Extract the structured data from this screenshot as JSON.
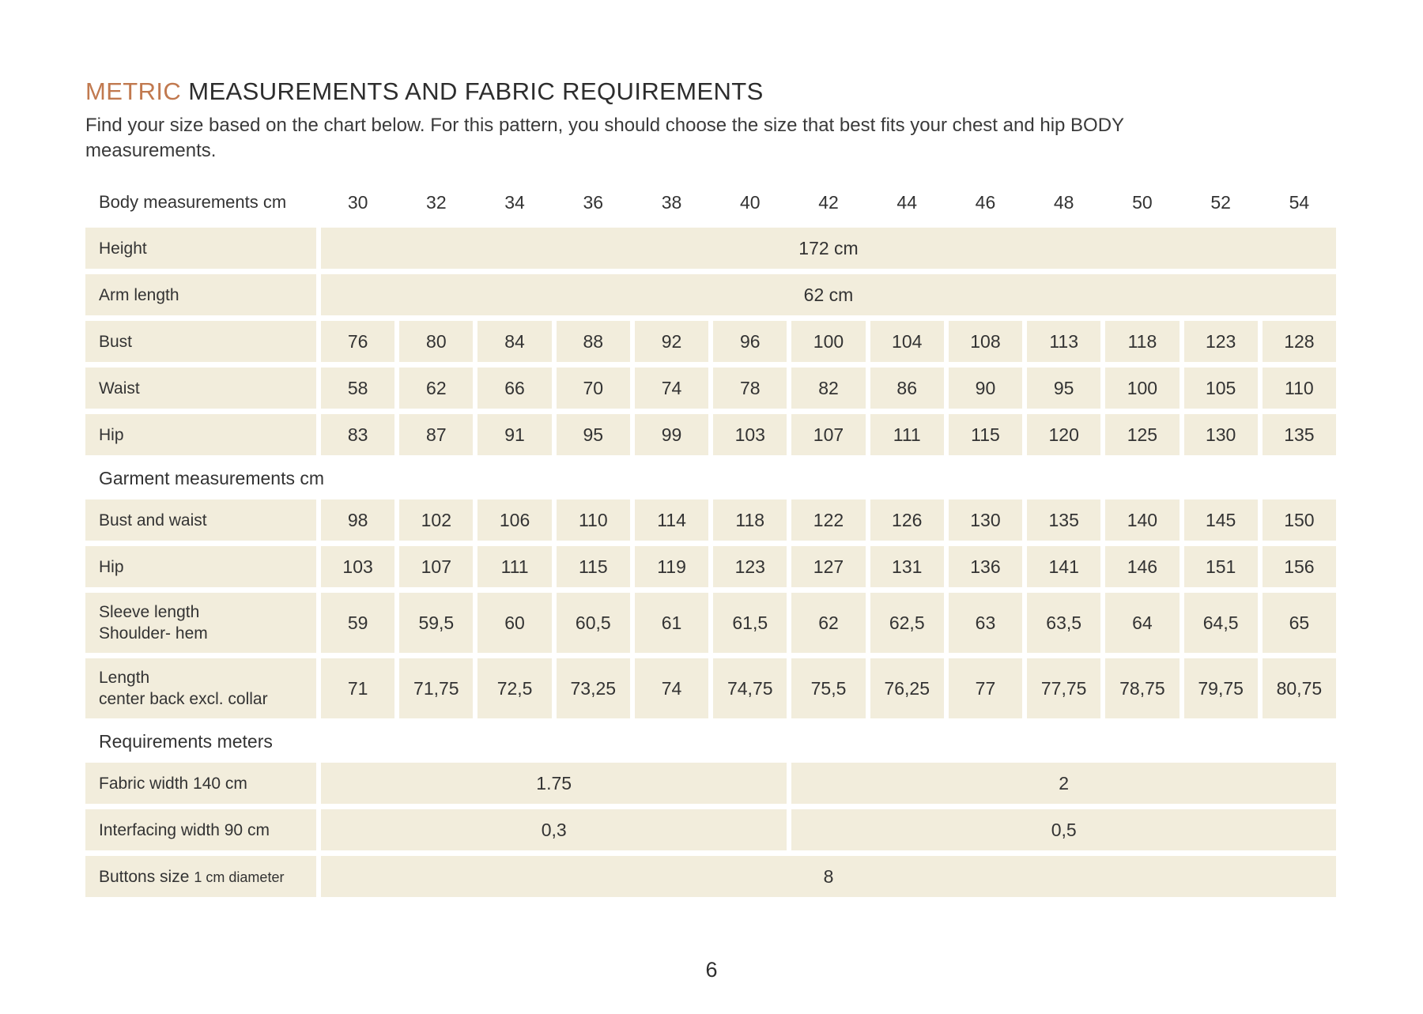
{
  "document": {
    "title": {
      "highlight": "METRIC",
      "rest": "MEASUREMENTS AND FABRIC REQUIREMENTS"
    },
    "intro": "Find your size based on the chart below. For this pattern, you should choose the size that best fits your chest and hip BODY measurements.",
    "page_number": "6"
  },
  "colors": {
    "accent": "#c1794f",
    "cell_bg": "#f2eddc",
    "text": "#333333"
  },
  "table": {
    "header_label": "Body measurements cm",
    "sizes": [
      "30",
      "32",
      "34",
      "36",
      "38",
      "40",
      "42",
      "44",
      "46",
      "48",
      "50",
      "52",
      "54"
    ],
    "rows": [
      {
        "type": "span",
        "label": [
          "Height"
        ],
        "value": "172 cm",
        "span": 13
      },
      {
        "type": "span",
        "label": [
          "Arm length"
        ],
        "value": "62 cm",
        "span": 13
      },
      {
        "type": "cells",
        "label": [
          "Bust"
        ],
        "values": [
          "76",
          "80",
          "84",
          "88",
          "92",
          "96",
          "100",
          "104",
          "108",
          "113",
          "118",
          "123",
          "128"
        ]
      },
      {
        "type": "cells",
        "label": [
          "Waist"
        ],
        "values": [
          "58",
          "62",
          "66",
          "70",
          "74",
          "78",
          "82",
          "86",
          "90",
          "95",
          "100",
          "105",
          "110"
        ]
      },
      {
        "type": "cells",
        "label": [
          "Hip"
        ],
        "values": [
          "83",
          "87",
          "91",
          "95",
          "99",
          "103",
          "107",
          "111",
          "115",
          "120",
          "125",
          "130",
          "135"
        ]
      },
      {
        "type": "section",
        "label": [
          "Garment measurements cm"
        ]
      },
      {
        "type": "cells",
        "label": [
          "Bust and waist"
        ],
        "values": [
          "98",
          "102",
          "106",
          "110",
          "114",
          "118",
          "122",
          "126",
          "130",
          "135",
          "140",
          "145",
          "150"
        ]
      },
      {
        "type": "cells",
        "label": [
          "Hip"
        ],
        "values": [
          "103",
          "107",
          "111",
          "115",
          "119",
          "123",
          "127",
          "131",
          "136",
          "141",
          "146",
          "151",
          "156"
        ]
      },
      {
        "type": "cells",
        "label": [
          "Sleeve length",
          "Shoulder- hem"
        ],
        "values": [
          "59",
          "59,5",
          "60",
          "60,5",
          "61",
          "61,5",
          "62",
          "62,5",
          "63",
          "63,5",
          "64",
          "64,5",
          "65"
        ]
      },
      {
        "type": "cells",
        "label": [
          "Length",
          "center back excl. collar"
        ],
        "values": [
          "71",
          "71,75",
          "72,5",
          "73,25",
          "74",
          "74,75",
          "75,5",
          "76,25",
          "77",
          "77,75",
          "78,75",
          "79,75",
          "80,75"
        ]
      },
      {
        "type": "section",
        "label": [
          "Requirements meters"
        ]
      },
      {
        "type": "split",
        "label": [
          "Fabric width 140 cm"
        ],
        "left": "1.75",
        "left_span": 6,
        "right": "2",
        "right_span": 7
      },
      {
        "type": "split",
        "label": [
          "Interfacing width 90 cm"
        ],
        "left": "0,3",
        "left_span": 6,
        "right": "0,5",
        "right_span": 7
      },
      {
        "type": "span",
        "label": [
          "Buttons size"
        ],
        "label_small": "1 cm diameter",
        "value": "8",
        "span": 13
      }
    ]
  }
}
